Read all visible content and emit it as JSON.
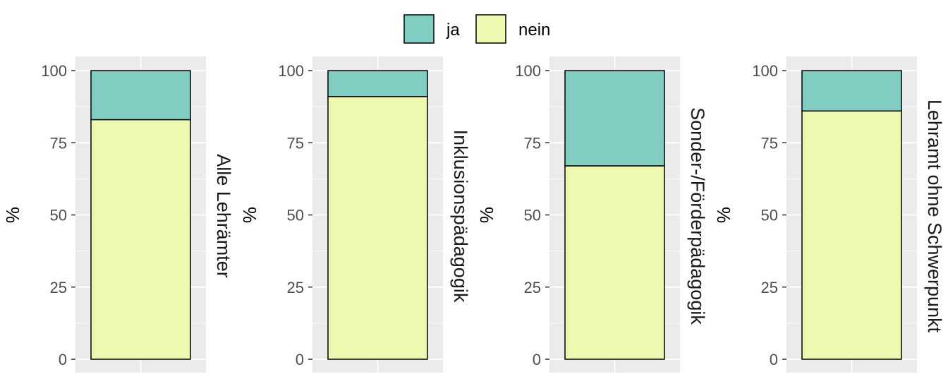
{
  "chart_data": {
    "type": "bar",
    "stacked": true,
    "percent": true,
    "ylim": [
      0,
      100
    ],
    "yticks": [
      "0",
      "25",
      "50",
      "75",
      "100"
    ],
    "ylabel": "%",
    "grid": true,
    "legend": {
      "position": "top",
      "entries": [
        {
          "name": "ja",
          "color": "#80CDC1"
        },
        {
          "name": "nein",
          "color": "#EDF8B1"
        }
      ]
    },
    "facets": [
      "Alle Lehrämter",
      "Inklusionspädagogik",
      "Sonder-/Förderpädagogik",
      "Lehramt ohne Schwerpunkt"
    ],
    "series": [
      {
        "name": "nein",
        "color": "#EDF8B1",
        "values": [
          83,
          91,
          67,
          86
        ]
      },
      {
        "name": "ja",
        "color": "#80CDC1",
        "values": [
          17,
          9,
          33,
          14
        ]
      }
    ]
  }
}
